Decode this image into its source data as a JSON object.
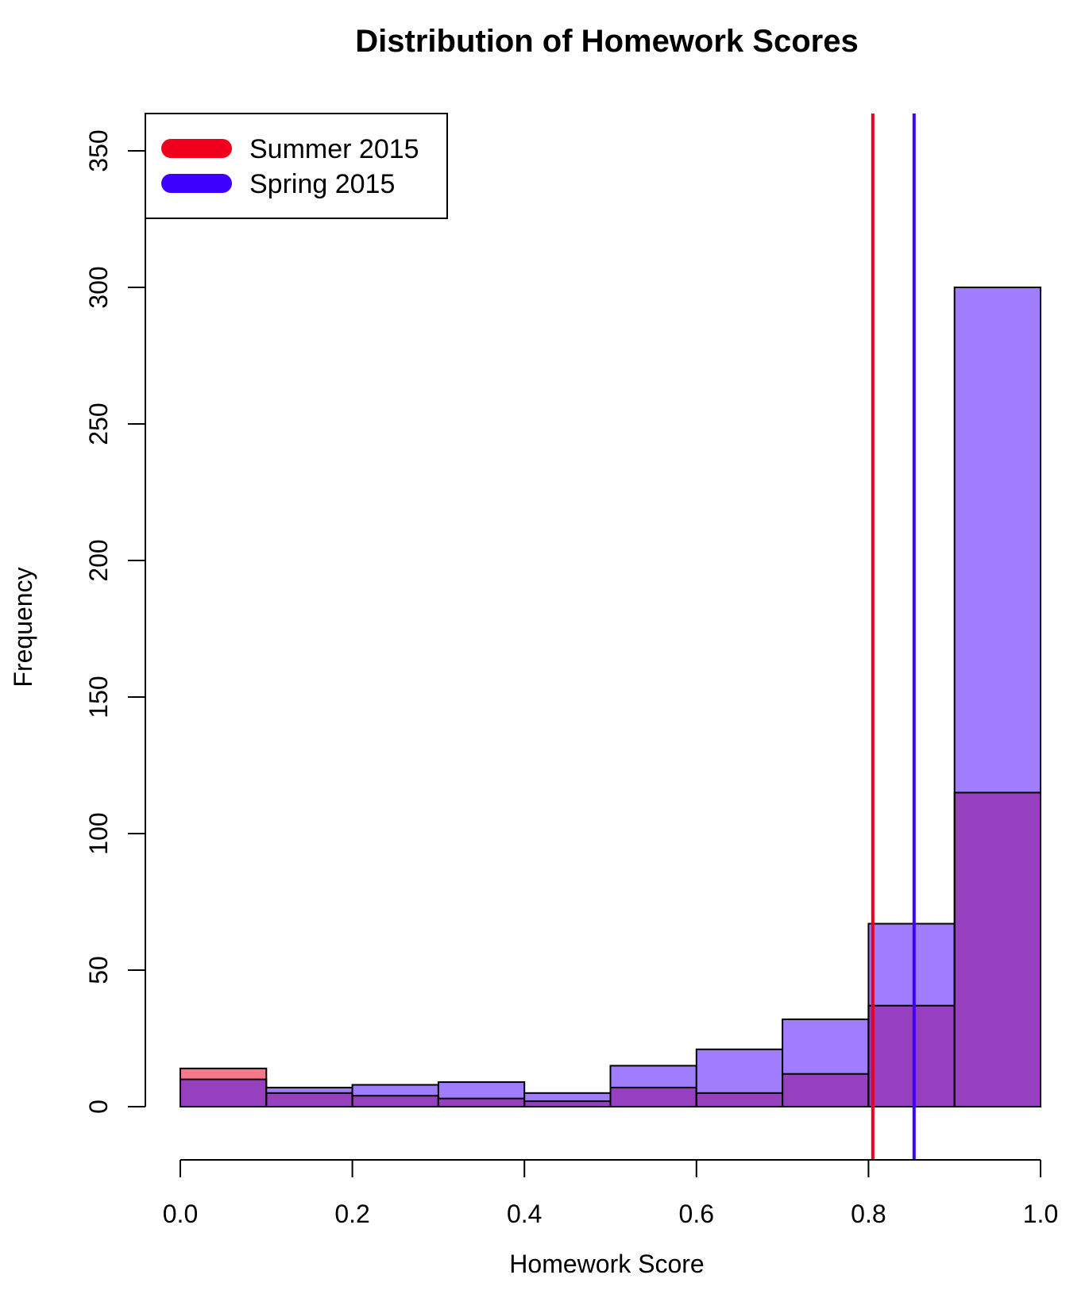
{
  "chart_data": {
    "type": "bar",
    "title": "Distribution of Homework Scores",
    "xlabel": "Homework Score",
    "ylabel": "Frequency",
    "xlim": [
      0.0,
      1.0
    ],
    "ylim": [
      0,
      350
    ],
    "x_ticks": [
      "0.0",
      "0.2",
      "0.4",
      "0.6",
      "0.8",
      "1.0"
    ],
    "y_ticks": [
      "0",
      "50",
      "100",
      "150",
      "200",
      "250",
      "300",
      "350"
    ],
    "bin_edges": [
      0.0,
      0.1,
      0.2,
      0.3,
      0.4,
      0.5,
      0.6,
      0.7,
      0.8,
      0.9,
      1.0
    ],
    "series": [
      {
        "name": "Summer 2015",
        "color": "#f7788a",
        "legend_color": "#f0001c",
        "values": [
          14,
          5,
          4,
          3,
          2,
          7,
          5,
          12,
          37,
          115
        ],
        "mean_line": 0.805,
        "line_color": "#e8001c"
      },
      {
        "name": "Spring 2015",
        "color": "#9f7dfc",
        "legend_color": "#3d00ff",
        "values": [
          10,
          7,
          8,
          9,
          5,
          15,
          21,
          32,
          67,
          300
        ],
        "mean_line": 0.853,
        "line_color": "#3d00ff"
      }
    ],
    "overlap_color": "#9640c0",
    "grid": false,
    "legend_position": "top-left"
  }
}
